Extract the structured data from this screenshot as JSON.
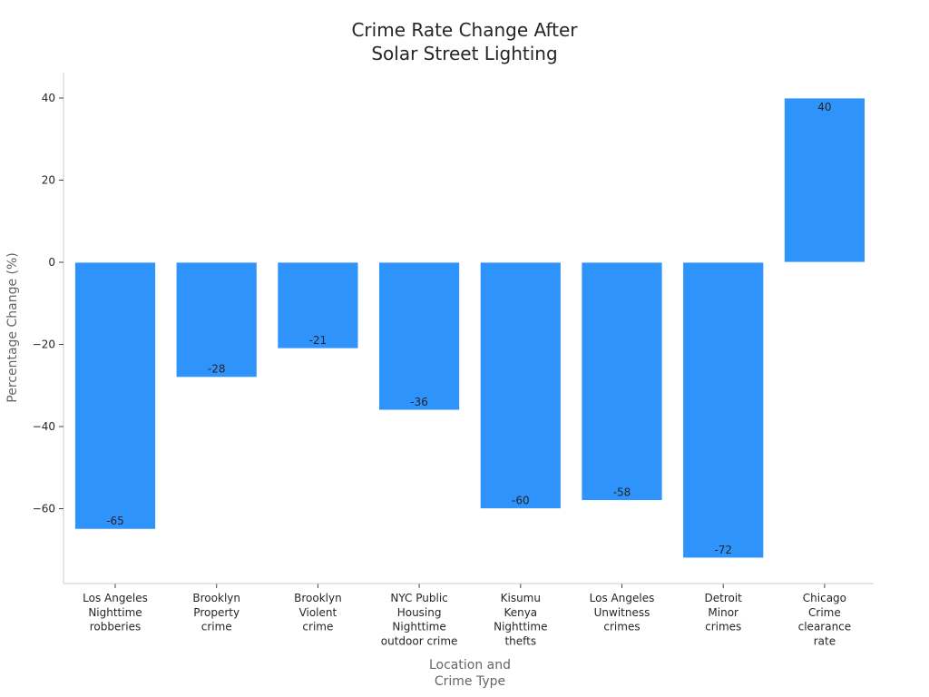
{
  "chart_data": {
    "type": "bar",
    "title_lines": [
      "Crime Rate Change After",
      "Solar Street Lighting"
    ],
    "xlabel_lines": [
      "Location and",
      "Crime Type"
    ],
    "ylabel": "Percentage Change (%)",
    "ylim": [
      -78,
      46
    ],
    "yticks": [
      40,
      20,
      0,
      -20,
      -40,
      -60
    ],
    "ytick_labels": [
      "40",
      "20",
      "0",
      "−20",
      "−40",
      "−60"
    ],
    "grid": false,
    "categories": [
      [
        "Los Angeles",
        "Nighttime",
        "robberies"
      ],
      [
        "Brooklyn",
        "Property",
        "crime"
      ],
      [
        "Brooklyn",
        "Violent",
        "crime"
      ],
      [
        "NYC Public",
        "Housing",
        "Nighttime",
        "outdoor crime"
      ],
      [
        "Kisumu",
        "Kenya",
        "Nighttime",
        "thefts"
      ],
      [
        "Los Angeles",
        "Unwitness",
        "crimes"
      ],
      [
        "Detroit",
        "Minor",
        "crimes"
      ],
      [
        "Chicago",
        "Crime",
        "clearance",
        "rate"
      ]
    ],
    "values": [
      -65,
      -28,
      -21,
      -36,
      -60,
      -58,
      -72,
      40
    ],
    "value_labels": [
      "-65",
      "-28",
      "-21",
      "-36",
      "-60",
      "-58",
      "-72",
      "40"
    ],
    "bar_color": "#2e93fa",
    "text_color": "#262626",
    "axis_color": "#cccccc"
  }
}
